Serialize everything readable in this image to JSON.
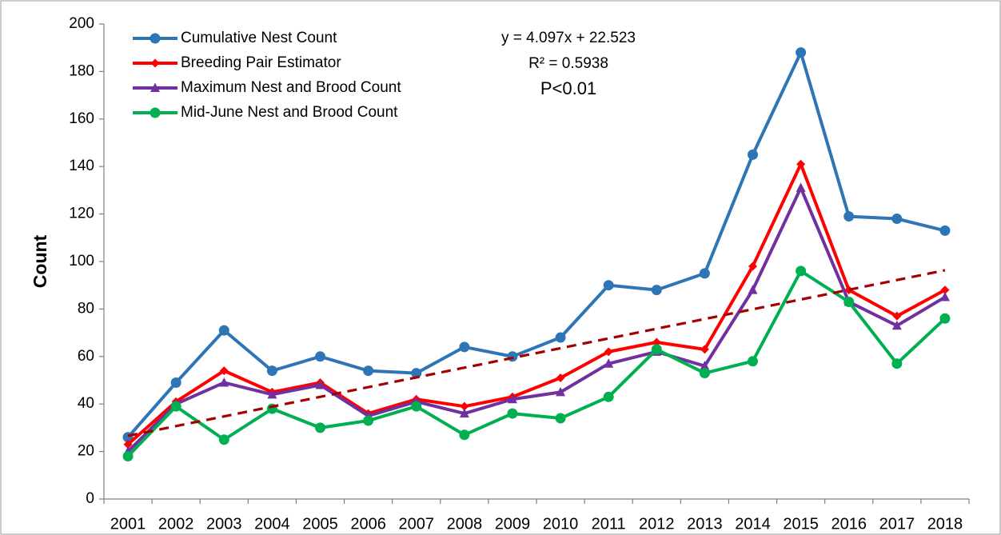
{
  "chart_data": {
    "type": "line",
    "y_label": "Count",
    "categories": [
      "2001",
      "2002",
      "2003",
      "2004",
      "2005",
      "2006",
      "2007",
      "2008",
      "2009",
      "2010",
      "2011",
      "2012",
      "2013",
      "2014",
      "2015",
      "2016",
      "2017",
      "2018"
    ],
    "series": [
      {
        "name": "Cumulative Nest Count",
        "color": "#2e75b6",
        "marker": "circle",
        "values": [
          26,
          49,
          71,
          54,
          60,
          54,
          53,
          64,
          60,
          68,
          90,
          88,
          95,
          145,
          188,
          119,
          118,
          113
        ]
      },
      {
        "name": "Breeding Pair Estimator",
        "color": "#ff0000",
        "marker": "diamond",
        "values": [
          23,
          41,
          54,
          45,
          49,
          36,
          42,
          39,
          43,
          51,
          62,
          66,
          63,
          98,
          141,
          88,
          77,
          88
        ]
      },
      {
        "name": "Maximum Nest and Brood Count",
        "color": "#7030a0",
        "marker": "triangle",
        "values": [
          20,
          40,
          49,
          44,
          48,
          35,
          41,
          36,
          42,
          45,
          57,
          62,
          56,
          88,
          131,
          83,
          73,
          85
        ]
      },
      {
        "name": "Mid-June Nest and Brood Count",
        "color": "#00b050",
        "marker": "circle",
        "values": [
          18,
          39,
          25,
          38,
          30,
          33,
          39,
          27,
          36,
          34,
          43,
          63,
          53,
          58,
          96,
          83,
          57,
          76
        ]
      }
    ],
    "trendline": {
      "color": "#a50000",
      "start": 26.6,
      "end": 96.3,
      "equation": "y = 4.097x + 22.523",
      "r_squared": "R² = 0.5938",
      "p_value": "P<0.01"
    },
    "ylim": [
      0,
      200
    ],
    "yticks": [
      0,
      20,
      40,
      60,
      80,
      100,
      120,
      140,
      160,
      180,
      200
    ],
    "legend": "top-left"
  }
}
